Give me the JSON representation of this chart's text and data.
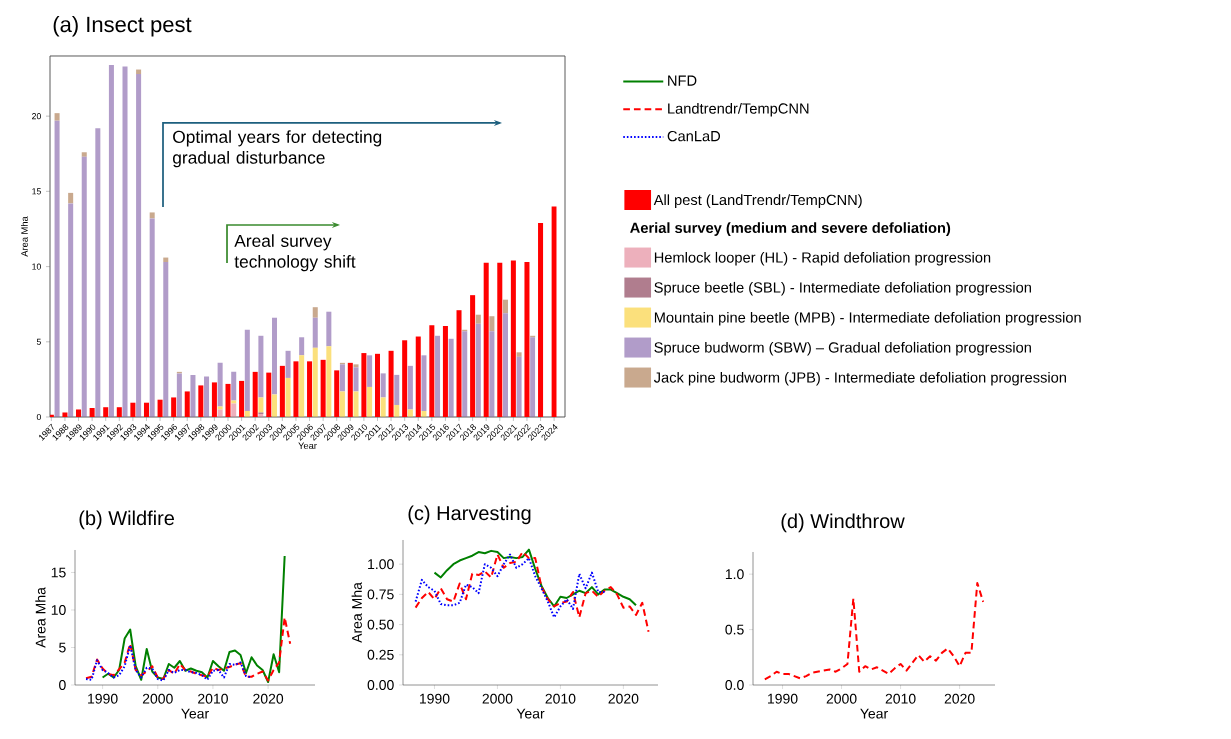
{
  "chart_data": [
    {
      "type": "bar",
      "title": "(a) Insect pest",
      "xlabel": "Year",
      "ylabel": "Area Mha",
      "legend_title": "Aerial survey (medium and severe defoliation)",
      "stacked": true,
      "legend": "right",
      "categories": [
        "1987",
        "1988",
        "1989",
        "1990",
        "1991",
        "1992",
        "1993",
        "1994",
        "1995",
        "1996",
        "1997",
        "1998",
        "1999",
        "2000",
        "2001",
        "2002",
        "2003",
        "2004",
        "2005",
        "2006",
        "2007",
        "2008",
        "2009",
        "2010",
        "2011",
        "2012",
        "2013",
        "2014",
        "2015",
        "2016",
        "2017",
        "2018",
        "2019",
        "2020",
        "2021",
        "2022",
        "2023",
        "2024"
      ],
      "ylim": [
        0,
        24
      ],
      "yticks": [
        0,
        5,
        10,
        15,
        20
      ],
      "annotations": [
        "Optimal years for detecting gradual disturbance",
        "Areal survey technology shift"
      ],
      "series": [
        {
          "name": "Hemlock looper (HL) - Rapid defoliation progression",
          "color": "#edb0bc",
          "values": [
            0,
            0,
            0,
            0,
            0,
            0,
            0,
            0,
            0,
            0,
            0,
            0,
            0.5,
            0.9,
            0,
            0.2,
            0,
            0,
            0,
            0,
            0,
            0,
            0,
            0,
            0,
            0,
            0,
            0,
            0,
            0,
            0,
            0,
            0,
            0,
            0,
            0,
            null,
            null
          ]
        },
        {
          "name": "Spruce beetle (SBL) - Intermediate defoliation progression",
          "color": "#b07d8e",
          "values": [
            0,
            0,
            0,
            0,
            0,
            0,
            0,
            0,
            0,
            0,
            0,
            0,
            0,
            0,
            0,
            0.1,
            0,
            0,
            0,
            0,
            0,
            0,
            0,
            0,
            0,
            0,
            0,
            0,
            0,
            0,
            0,
            0,
            0,
            0,
            0,
            0,
            null,
            null
          ]
        },
        {
          "name": "Mountain pine beetle (MPB) - Intermediate defoliation progression",
          "color": "#fbe07c",
          "values": [
            0,
            0,
            0,
            0,
            0,
            0,
            0,
            0,
            0,
            0,
            0,
            0,
            0.2,
            0.2,
            0.4,
            1.0,
            1.5,
            2.6,
            4.1,
            4.6,
            4.7,
            1.7,
            1.7,
            2.0,
            1.3,
            0.8,
            0.5,
            0.4,
            0,
            0,
            0,
            0,
            0,
            0,
            0,
            0,
            null,
            null
          ]
        },
        {
          "name": "Spruce budworm (SBW) – Gradual defoliation progression",
          "color": "#b19cc9",
          "values": [
            19.7,
            14.2,
            17.3,
            19.2,
            23.4,
            23.3,
            22.8,
            13.2,
            10.3,
            2.9,
            2.8,
            2.7,
            2.9,
            1.9,
            5.4,
            4.1,
            5.1,
            1.8,
            1.2,
            2.0,
            2.3,
            1.8,
            1.6,
            2.1,
            1.6,
            2.0,
            2.9,
            3.7,
            5.4,
            5.2,
            5.7,
            6.2,
            5.7,
            6.9,
            4.0,
            5.3,
            null,
            null
          ]
        },
        {
          "name": "Jack pine budworm (JPB) - Intermediate defoliation progression",
          "color": "#c9a98e",
          "values": [
            0.5,
            0.7,
            0.3,
            0,
            0,
            0,
            0.3,
            0.4,
            0.3,
            0.1,
            0,
            0,
            0,
            0,
            0,
            0,
            0,
            0,
            0,
            0.7,
            0,
            0.1,
            0.2,
            0,
            0,
            0,
            0,
            0,
            0,
            0,
            0.1,
            0.6,
            1.0,
            0.9,
            0.3,
            0.1,
            null,
            null
          ]
        }
      ]
    },
    {
      "type": "bar",
      "legend": "right",
      "tick_labels": false,
      "categories": [
        "1987",
        "1988",
        "1989",
        "1990",
        "1991",
        "1992",
        "1993",
        "1994",
        "1995",
        "1996",
        "1997",
        "1998",
        "1999",
        "2000",
        "2001",
        "2002",
        "2003",
        "2004",
        "2005",
        "2006",
        "2007",
        "2008",
        "2009",
        "2010",
        "2011",
        "2012",
        "2013",
        "2014",
        "2015",
        "2016",
        "2017",
        "2018",
        "2019",
        "2020",
        "2021",
        "2022",
        "2023",
        "2024"
      ],
      "ylim": [
        0,
        24
      ],
      "yticks": [
        0,
        5,
        10,
        15,
        20
      ],
      "series": [
        {
          "name": "All pest (LandTrendr/TempCNN)",
          "color": "#ff0000",
          "values": [
            0.15,
            0.3,
            0.5,
            0.6,
            0.65,
            0.65,
            0.95,
            0.95,
            1.15,
            1.3,
            1.7,
            2.1,
            2.3,
            2.2,
            2.4,
            3.0,
            2.95,
            3.4,
            3.7,
            3.7,
            3.8,
            3.1,
            3.6,
            4.25,
            4.2,
            4.4,
            5.1,
            5.35,
            6.1,
            6.05,
            7.1,
            8.1,
            10.25,
            10.25,
            10.4,
            10.3,
            12.9,
            14.0
          ]
        }
      ]
    },
    {
      "type": "line",
      "title": "(b) Wildfire",
      "xlabel": "Year",
      "ylabel": "Area Mha",
      "legend": "top right",
      "xlim": [
        1985,
        2028.5
      ],
      "ylim": [
        0,
        18
      ],
      "xticks": [
        1990,
        2000,
        2010,
        2020
      ],
      "yticks": [
        0,
        5,
        10,
        15
      ],
      "series": [
        {
          "name": "NFD",
          "color": "#008000",
          "line_style": "solid",
          "x": [
            1990,
            1991,
            1992,
            1993,
            1994,
            1995,
            1996,
            1997,
            1998,
            1999,
            2000,
            2001,
            2002,
            2003,
            2004,
            2005,
            2006,
            2007,
            2008,
            2009,
            2010,
            2011,
            2012,
            2013,
            2014,
            2015,
            2016,
            2017,
            2018,
            2019,
            2020,
            2021,
            2022,
            2023
          ],
          "values": [
            1.0,
            1.5,
            1.0,
            2.0,
            6.2,
            7.4,
            2.5,
            0.7,
            4.8,
            1.8,
            1.0,
            0.8,
            2.8,
            2.3,
            3.2,
            1.9,
            2.2,
            1.9,
            1.7,
            1.0,
            3.2,
            2.5,
            1.9,
            4.4,
            4.6,
            4.0,
            1.6,
            3.7,
            2.6,
            2.0,
            0.4,
            4.1,
            1.7,
            17.2
          ]
        },
        {
          "name": "Landtrendr/TempCNN",
          "color": "#ff0000",
          "line_style": "dashed",
          "x": [
            1987,
            1988,
            1989,
            1990,
            1991,
            1992,
            1993,
            1994,
            1995,
            1996,
            1997,
            1998,
            1999,
            2000,
            2001,
            2002,
            2003,
            2004,
            2005,
            2006,
            2007,
            2008,
            2009,
            2010,
            2011,
            2012,
            2013,
            2014,
            2015,
            2016,
            2017,
            2018,
            2019,
            2020,
            2021,
            2022,
            2023,
            2024
          ],
          "values": [
            0.9,
            1.1,
            3.4,
            2.2,
            1.5,
            1.3,
            2.1,
            3.0,
            5.5,
            2.0,
            1.3,
            1.8,
            2.5,
            1.0,
            0.8,
            2.0,
            1.5,
            2.8,
            2.0,
            1.8,
            1.5,
            1.3,
            1.1,
            2.3,
            2.0,
            2.2,
            2.4,
            2.7,
            2.9,
            1.1,
            1.1,
            1.5,
            1.8,
            0.6,
            2.0,
            3.0,
            9.0,
            5.5
          ]
        },
        {
          "name": "CanLaD",
          "color": "#0000ff",
          "line_style": "dotted",
          "x": [
            1987,
            1988,
            1989,
            1990,
            1991,
            1992,
            1993,
            1994,
            1995,
            1996,
            1997,
            1998,
            1999,
            2000,
            2001,
            2002,
            2003,
            2004,
            2005,
            2006,
            2007,
            2008,
            2009,
            2010,
            2011,
            2012,
            2013,
            2014,
            2015,
            2016,
            2017
          ],
          "values": [
            0.8,
            0.7,
            3.3,
            2.0,
            1.6,
            1.0,
            1.3,
            2.5,
            5.3,
            2.0,
            1.0,
            2.3,
            2.2,
            0.8,
            0.6,
            2.0,
            1.6,
            2.0,
            2.0,
            1.7,
            1.6,
            1.3,
            0.7,
            1.9,
            2.0,
            1.0,
            2.8,
            2.7,
            3.0,
            1.2,
            1.0
          ]
        }
      ]
    },
    {
      "type": "line",
      "title": "(c) Harvesting",
      "xlabel": "Year",
      "ylabel": "Area Mha",
      "xlim": [
        1985,
        2025.5
      ],
      "ylim": [
        0,
        1.2
      ],
      "xticks": [
        1990,
        2000,
        2010,
        2020
      ],
      "yticks": [
        {
          "value": 0,
          "label": "0.00"
        },
        {
          "value": 0.25,
          "label": "0.25"
        },
        {
          "value": 0.5,
          "label": "0.50"
        },
        {
          "value": 0.75,
          "label": "0.75"
        },
        {
          "value": 1.0,
          "label": "1.00"
        }
      ],
      "series": [
        {
          "color": "#008000",
          "line_style": "solid",
          "x": [
            1990,
            1991,
            1992,
            1993,
            1994,
            1995,
            1996,
            1997,
            1998,
            1999,
            2000,
            2001,
            2002,
            2003,
            2004,
            2005,
            2006,
            2007,
            2008,
            2009,
            2010,
            2011,
            2012,
            2013,
            2014,
            2015,
            2016,
            2017,
            2018,
            2019,
            2020,
            2021,
            2022
          ],
          "values": [
            0.93,
            0.89,
            0.95,
            1.0,
            1.03,
            1.05,
            1.07,
            1.1,
            1.09,
            1.11,
            1.1,
            1.05,
            1.06,
            1.05,
            1.06,
            1.12,
            0.96,
            0.82,
            0.72,
            0.65,
            0.73,
            0.72,
            0.75,
            0.78,
            0.76,
            0.81,
            0.75,
            0.79,
            0.79,
            0.76,
            0.73,
            0.71,
            0.66
          ]
        },
        {
          "color": "#ff0000",
          "line_style": "dashed",
          "x": [
            1987,
            1988,
            1989,
            1990,
            1991,
            1992,
            1993,
            1994,
            1995,
            1996,
            1997,
            1998,
            1999,
            2000,
            2001,
            2002,
            2003,
            2004,
            2005,
            2006,
            2007,
            2008,
            2009,
            2010,
            2011,
            2012,
            2013,
            2014,
            2015,
            2016,
            2017,
            2018,
            2019,
            2020,
            2021,
            2022,
            2023,
            2024
          ],
          "values": [
            0.64,
            0.72,
            0.77,
            0.71,
            0.8,
            0.71,
            0.69,
            0.84,
            0.71,
            0.92,
            0.91,
            0.94,
            0.89,
            1.08,
            0.97,
            1.01,
            1.02,
            1.1,
            1.05,
            1.05,
            0.81,
            0.71,
            0.65,
            0.68,
            0.69,
            0.77,
            0.56,
            0.76,
            0.78,
            0.73,
            0.78,
            0.81,
            0.75,
            0.64,
            0.65,
            0.58,
            0.68,
            0.44
          ]
        },
        {
          "color": "#0000ff",
          "line_style": "dotted",
          "x": [
            1987,
            1988,
            1989,
            1990,
            1991,
            1992,
            1993,
            1994,
            1995,
            1996,
            1997,
            1998,
            1999,
            2000,
            2001,
            2002,
            2003,
            2004,
            2005,
            2006,
            2007,
            2008,
            2009,
            2010,
            2011,
            2012,
            2013,
            2014,
            2015,
            2016,
            2017
          ],
          "values": [
            0.69,
            0.87,
            0.81,
            0.78,
            0.67,
            0.66,
            0.66,
            0.68,
            0.83,
            0.81,
            0.76,
            1.0,
            0.97,
            0.9,
            1.0,
            1.08,
            0.97,
            1.0,
            1.05,
            0.9,
            0.8,
            0.69,
            0.56,
            0.65,
            0.71,
            0.63,
            0.92,
            0.8,
            0.93,
            0.77,
            0.77
          ]
        }
      ]
    },
    {
      "type": "line",
      "title": "(d) Windthrow",
      "xlabel": "Year",
      "xlim": [
        1985,
        2026
      ],
      "ylim": [
        0,
        1.2
      ],
      "xticks": [
        1990,
        2000,
        2010,
        2020
      ],
      "yticks": [
        {
          "value": 0,
          "label": "0.0"
        },
        {
          "value": 0.5,
          "label": "0.5"
        },
        {
          "value": 1.0,
          "label": "1.0"
        }
      ],
      "series": [
        {
          "color": "#ff0000",
          "line_style": "dashed",
          "x": [
            1987,
            1988,
            1989,
            1990,
            1991,
            1992,
            1993,
            1994,
            1995,
            1996,
            1997,
            1998,
            1999,
            2000,
            2001,
            2002,
            2003,
            2004,
            2005,
            2006,
            2007,
            2008,
            2009,
            2010,
            2011,
            2012,
            2013,
            2014,
            2015,
            2016,
            2017,
            2018,
            2019,
            2020,
            2021,
            2022,
            2023,
            2024
          ],
          "values": [
            0.05,
            0.08,
            0.12,
            0.1,
            0.1,
            0.08,
            0.06,
            0.08,
            0.11,
            0.12,
            0.13,
            0.14,
            0.12,
            0.15,
            0.19,
            0.78,
            0.12,
            0.17,
            0.14,
            0.16,
            0.13,
            0.1,
            0.15,
            0.19,
            0.13,
            0.2,
            0.27,
            0.21,
            0.26,
            0.22,
            0.29,
            0.33,
            0.26,
            0.17,
            0.29,
            0.29,
            0.92,
            0.75
          ]
        }
      ]
    }
  ]
}
